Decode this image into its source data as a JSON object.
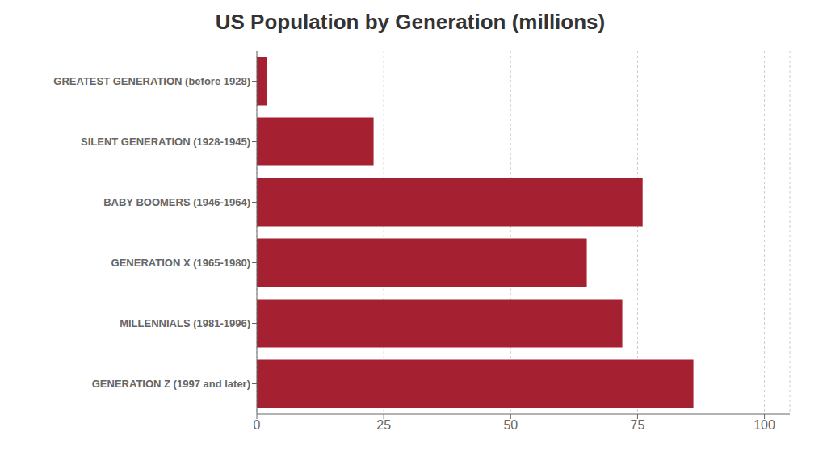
{
  "chart_data": {
    "type": "bar",
    "title": "US Population by Generation (millions)",
    "orientation": "horizontal",
    "categories": [
      "GREATEST GENERATION (before 1928)",
      "SILENT GENERATION (1928-1945)",
      "BABY BOOMERS (1946-1964)",
      "GENERATION X (1965-1980)",
      "MILLENNIALS (1981-1996)",
      "GENERATION Z (1997 and later)"
    ],
    "values": [
      2,
      23,
      76,
      65,
      72,
      86
    ],
    "color": "#a52030",
    "xlim": [
      0,
      105
    ],
    "xticks": [
      0,
      25,
      50,
      75,
      100
    ],
    "grid": true
  }
}
